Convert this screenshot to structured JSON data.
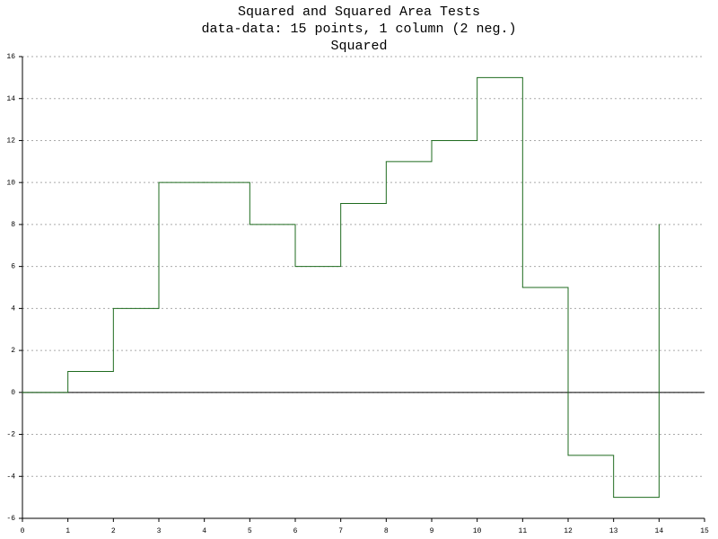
{
  "chart_data": {
    "type": "step",
    "title": "Squared and Squared Area Tests",
    "subtitle": "data-data: 15 points, 1 column (2 neg.)",
    "plot_title": "Squared",
    "x": [
      0,
      1,
      2,
      3,
      4,
      5,
      6,
      7,
      8,
      9,
      10,
      11,
      12,
      13,
      14
    ],
    "series": [
      {
        "color": "#1f6b1f",
        "values": [
          0,
          1,
          4,
          10,
          10,
          8,
          6,
          9,
          11,
          12,
          15,
          5,
          -3,
          -5,
          8
        ]
      }
    ],
    "xlim": [
      0,
      15
    ],
    "ylim": [
      -6,
      16
    ],
    "xticks": [
      0,
      1,
      2,
      3,
      4,
      5,
      6,
      7,
      8,
      9,
      10,
      11,
      12,
      13,
      14,
      15
    ],
    "yticks": [
      -6,
      -4,
      -2,
      0,
      2,
      4,
      6,
      8,
      10,
      12,
      14,
      16
    ],
    "grid": true
  }
}
